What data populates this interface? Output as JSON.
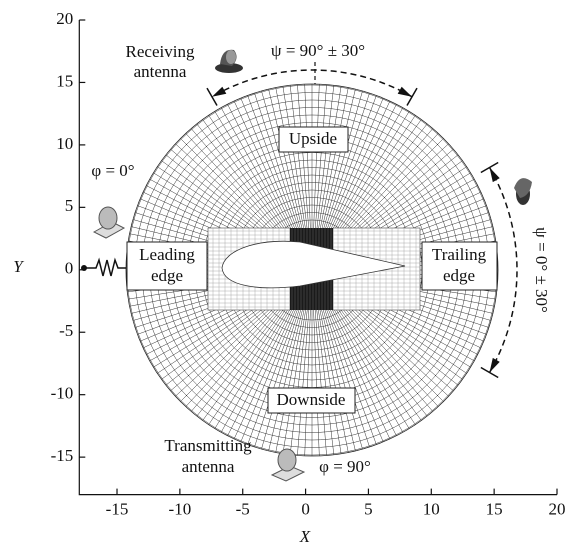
{
  "axes": {
    "xlabel": "X",
    "ylabel": "Y",
    "xlim": [
      -18,
      20
    ],
    "ylim": [
      -18,
      20
    ],
    "xticks": [
      -15,
      -10,
      -5,
      0,
      5,
      10,
      15,
      20
    ],
    "yticks": [
      -15,
      -10,
      -5,
      0,
      5,
      10,
      15,
      20
    ]
  },
  "labels": {
    "receiving": [
      "Receiving",
      "antenna"
    ],
    "psi_top": "ψ = 90° ± 30°",
    "phi_left": "φ = 0°",
    "leading": [
      "Leading",
      "edge"
    ],
    "upside": "Upside",
    "trailing": [
      "Trailing",
      "edge"
    ],
    "psi_right": "ψ = 0° ± 30°",
    "downside": "Downside",
    "transmitting": [
      "Transmitting",
      "antenna"
    ],
    "phi_bottom": "φ = 90°"
  }
}
